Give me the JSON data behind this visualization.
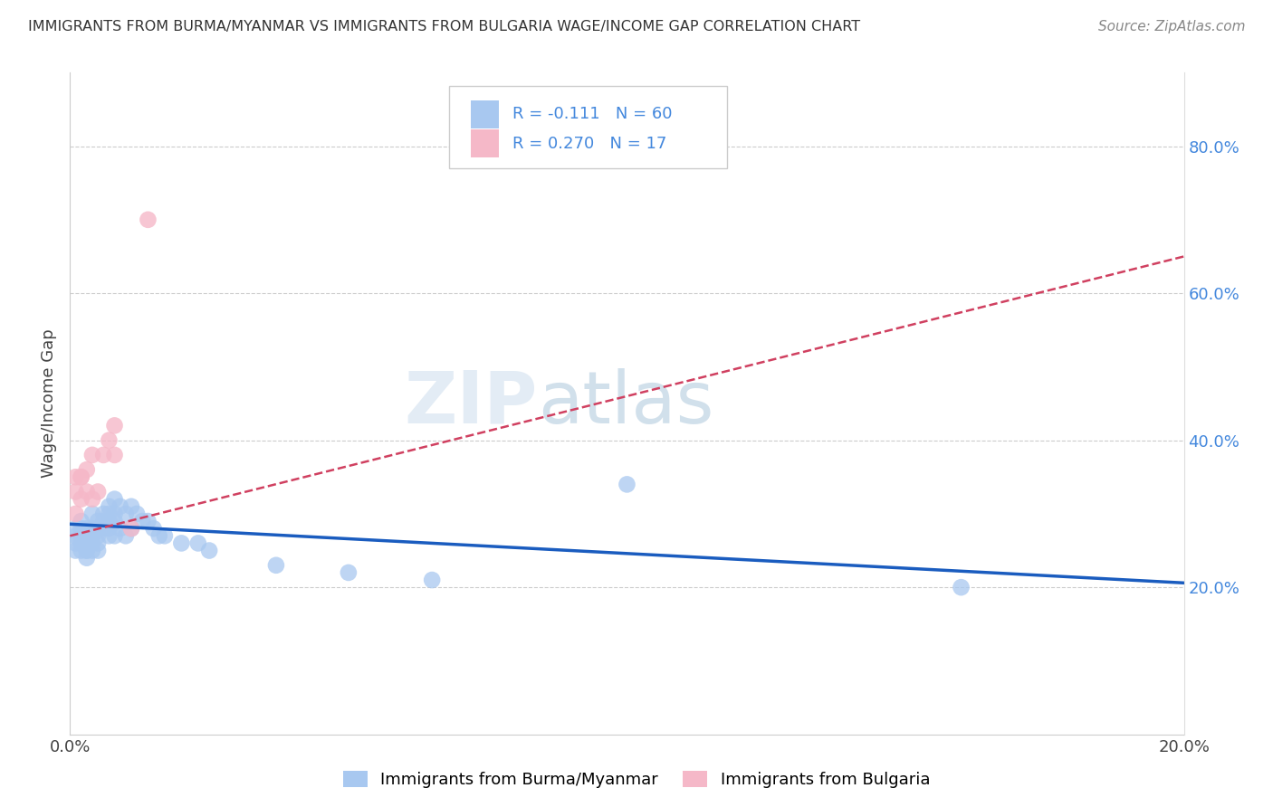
{
  "title": "IMMIGRANTS FROM BURMA/MYANMAR VS IMMIGRANTS FROM BULGARIA WAGE/INCOME GAP CORRELATION CHART",
  "source": "Source: ZipAtlas.com",
  "ylabel": "Wage/Income Gap",
  "legend_label1": "Immigrants from Burma/Myanmar",
  "legend_label2": "Immigrants from Bulgaria",
  "r1": -0.111,
  "n1": 60,
  "r2": 0.27,
  "n2": 17,
  "xlim": [
    0.0,
    0.2
  ],
  "ylim": [
    0.0,
    0.9
  ],
  "right_yticks": [
    0.2,
    0.4,
    0.6,
    0.8
  ],
  "right_yticklabels": [
    "20.0%",
    "40.0%",
    "60.0%",
    "80.0%"
  ],
  "color_burma": "#a8c8f0",
  "color_bulgaria": "#f5b8c8",
  "line_color_burma": "#1a5cbf",
  "line_color_bulgaria": "#d04060",
  "watermark_zip": "ZIP",
  "watermark_atlas": "atlas",
  "burma_x": [
    0.001,
    0.001,
    0.001,
    0.001,
    0.002,
    0.002,
    0.002,
    0.002,
    0.002,
    0.002,
    0.003,
    0.003,
    0.003,
    0.003,
    0.003,
    0.003,
    0.003,
    0.004,
    0.004,
    0.004,
    0.004,
    0.004,
    0.004,
    0.005,
    0.005,
    0.005,
    0.005,
    0.005,
    0.006,
    0.006,
    0.006,
    0.007,
    0.007,
    0.007,
    0.007,
    0.007,
    0.008,
    0.008,
    0.008,
    0.008,
    0.009,
    0.009,
    0.01,
    0.01,
    0.011,
    0.011,
    0.012,
    0.013,
    0.014,
    0.015,
    0.016,
    0.017,
    0.02,
    0.023,
    0.025,
    0.037,
    0.05,
    0.065,
    0.1,
    0.16
  ],
  "burma_y": [
    0.28,
    0.27,
    0.26,
    0.25,
    0.29,
    0.28,
    0.27,
    0.27,
    0.26,
    0.25,
    0.28,
    0.27,
    0.27,
    0.26,
    0.25,
    0.25,
    0.24,
    0.3,
    0.28,
    0.27,
    0.27,
    0.26,
    0.25,
    0.29,
    0.28,
    0.27,
    0.26,
    0.25,
    0.3,
    0.29,
    0.28,
    0.31,
    0.3,
    0.29,
    0.28,
    0.27,
    0.32,
    0.3,
    0.29,
    0.27,
    0.31,
    0.28,
    0.3,
    0.27,
    0.31,
    0.28,
    0.3,
    0.29,
    0.29,
    0.28,
    0.27,
    0.27,
    0.26,
    0.26,
    0.25,
    0.23,
    0.22,
    0.21,
    0.34,
    0.2
  ],
  "bulgaria_x": [
    0.001,
    0.001,
    0.001,
    0.002,
    0.002,
    0.002,
    0.003,
    0.003,
    0.004,
    0.004,
    0.005,
    0.006,
    0.007,
    0.008,
    0.008,
    0.011,
    0.014
  ],
  "bulgaria_y": [
    0.3,
    0.33,
    0.35,
    0.32,
    0.35,
    0.35,
    0.33,
    0.36,
    0.32,
    0.38,
    0.33,
    0.38,
    0.4,
    0.38,
    0.42,
    0.28,
    0.7
  ]
}
